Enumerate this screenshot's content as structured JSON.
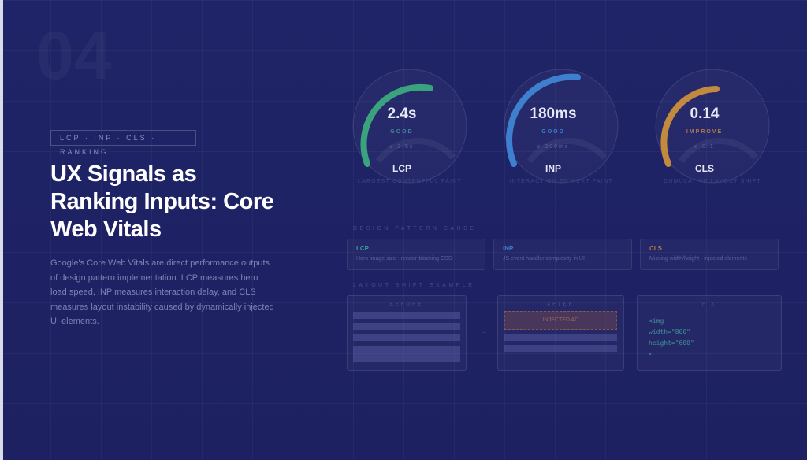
{
  "section_number": "04",
  "tag": "LCP · INP · CLS · RANKING",
  "title": "UX Signals as Ranking Inputs: Core Web Vitals",
  "description": "Google's Core Web Vitals are direct performance outputs of design pattern implementation. LCP measures hero load speed, INP measures interaction delay, and CLS measures layout instability caused by dynamically injected UI elements.",
  "gauges": [
    {
      "value": "2.4s",
      "status": "GOOD",
      "threshold": "≤ 2.5s",
      "abbr": "LCP",
      "full": "LARGEST CONTENTFUL PAINT",
      "color": "#3aa37e",
      "status_color": "#3f8a9a",
      "fill": 0.6
    },
    {
      "value": "180ms",
      "status": "GOOD",
      "threshold": "≤ 200ms",
      "abbr": "INP",
      "full": "INTERACTION TO NEXT PAINT",
      "color": "#3f7fcf",
      "status_color": "#3f7fcf",
      "fill": 0.75
    },
    {
      "value": "0.14",
      "status": "IMPROVE",
      "threshold": "≤ 0.1",
      "abbr": "CLS",
      "full": "CUMULATIVE LAYOUT SHIFT",
      "color": "#c28a3f",
      "status_color": "#b07a4a",
      "fill": 0.55
    }
  ],
  "cause_heading": "DESIGN PATTERN CAUSE",
  "causes": [
    {
      "key": "LCP",
      "text": "Hero image size · render-blocking CSS",
      "color": "#3a9e9a"
    },
    {
      "key": "INP",
      "text": "JS event handler complexity in UI",
      "color": "#3f7fcf"
    },
    {
      "key": "CLS",
      "text": "Missing width/height · injected elements",
      "color": "#b07a4a"
    }
  ],
  "example_heading": "LAYOUT SHIFT EXAMPLE",
  "before_label": "BEFORE",
  "after_label": "AFTER",
  "fix_label": "FIX",
  "arrow": "→",
  "injected_label": "INJECTED AD",
  "fix_code": [
    "<img",
    "width=\"800\"",
    "height=\"600\"",
    ">"
  ]
}
